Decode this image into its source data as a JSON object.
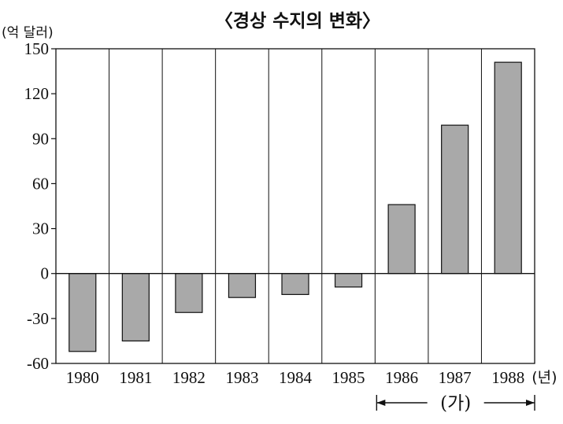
{
  "chart_data": {
    "type": "bar",
    "title": "〈경상 수지의 변화〉",
    "ylabel": "(억 달러)",
    "x_unit": "(년)",
    "categories": [
      "1980",
      "1981",
      "1982",
      "1983",
      "1984",
      "1985",
      "1986",
      "1987",
      "1988"
    ],
    "values": [
      -52,
      -45,
      -26,
      -16,
      -14,
      -9,
      46,
      99,
      141
    ],
    "ylim": [
      -60,
      150
    ],
    "yticks": [
      150,
      120,
      90,
      60,
      30,
      0,
      -30,
      -60
    ],
    "ytick_labels": [
      "150",
      "120",
      "90",
      "60",
      "30",
      "0",
      "-30",
      "-60"
    ],
    "annotation": {
      "label": "(가)",
      "span": [
        "1986",
        "1988"
      ]
    },
    "grid": "vertical category separators",
    "bar_color": "#a9a9a9"
  }
}
